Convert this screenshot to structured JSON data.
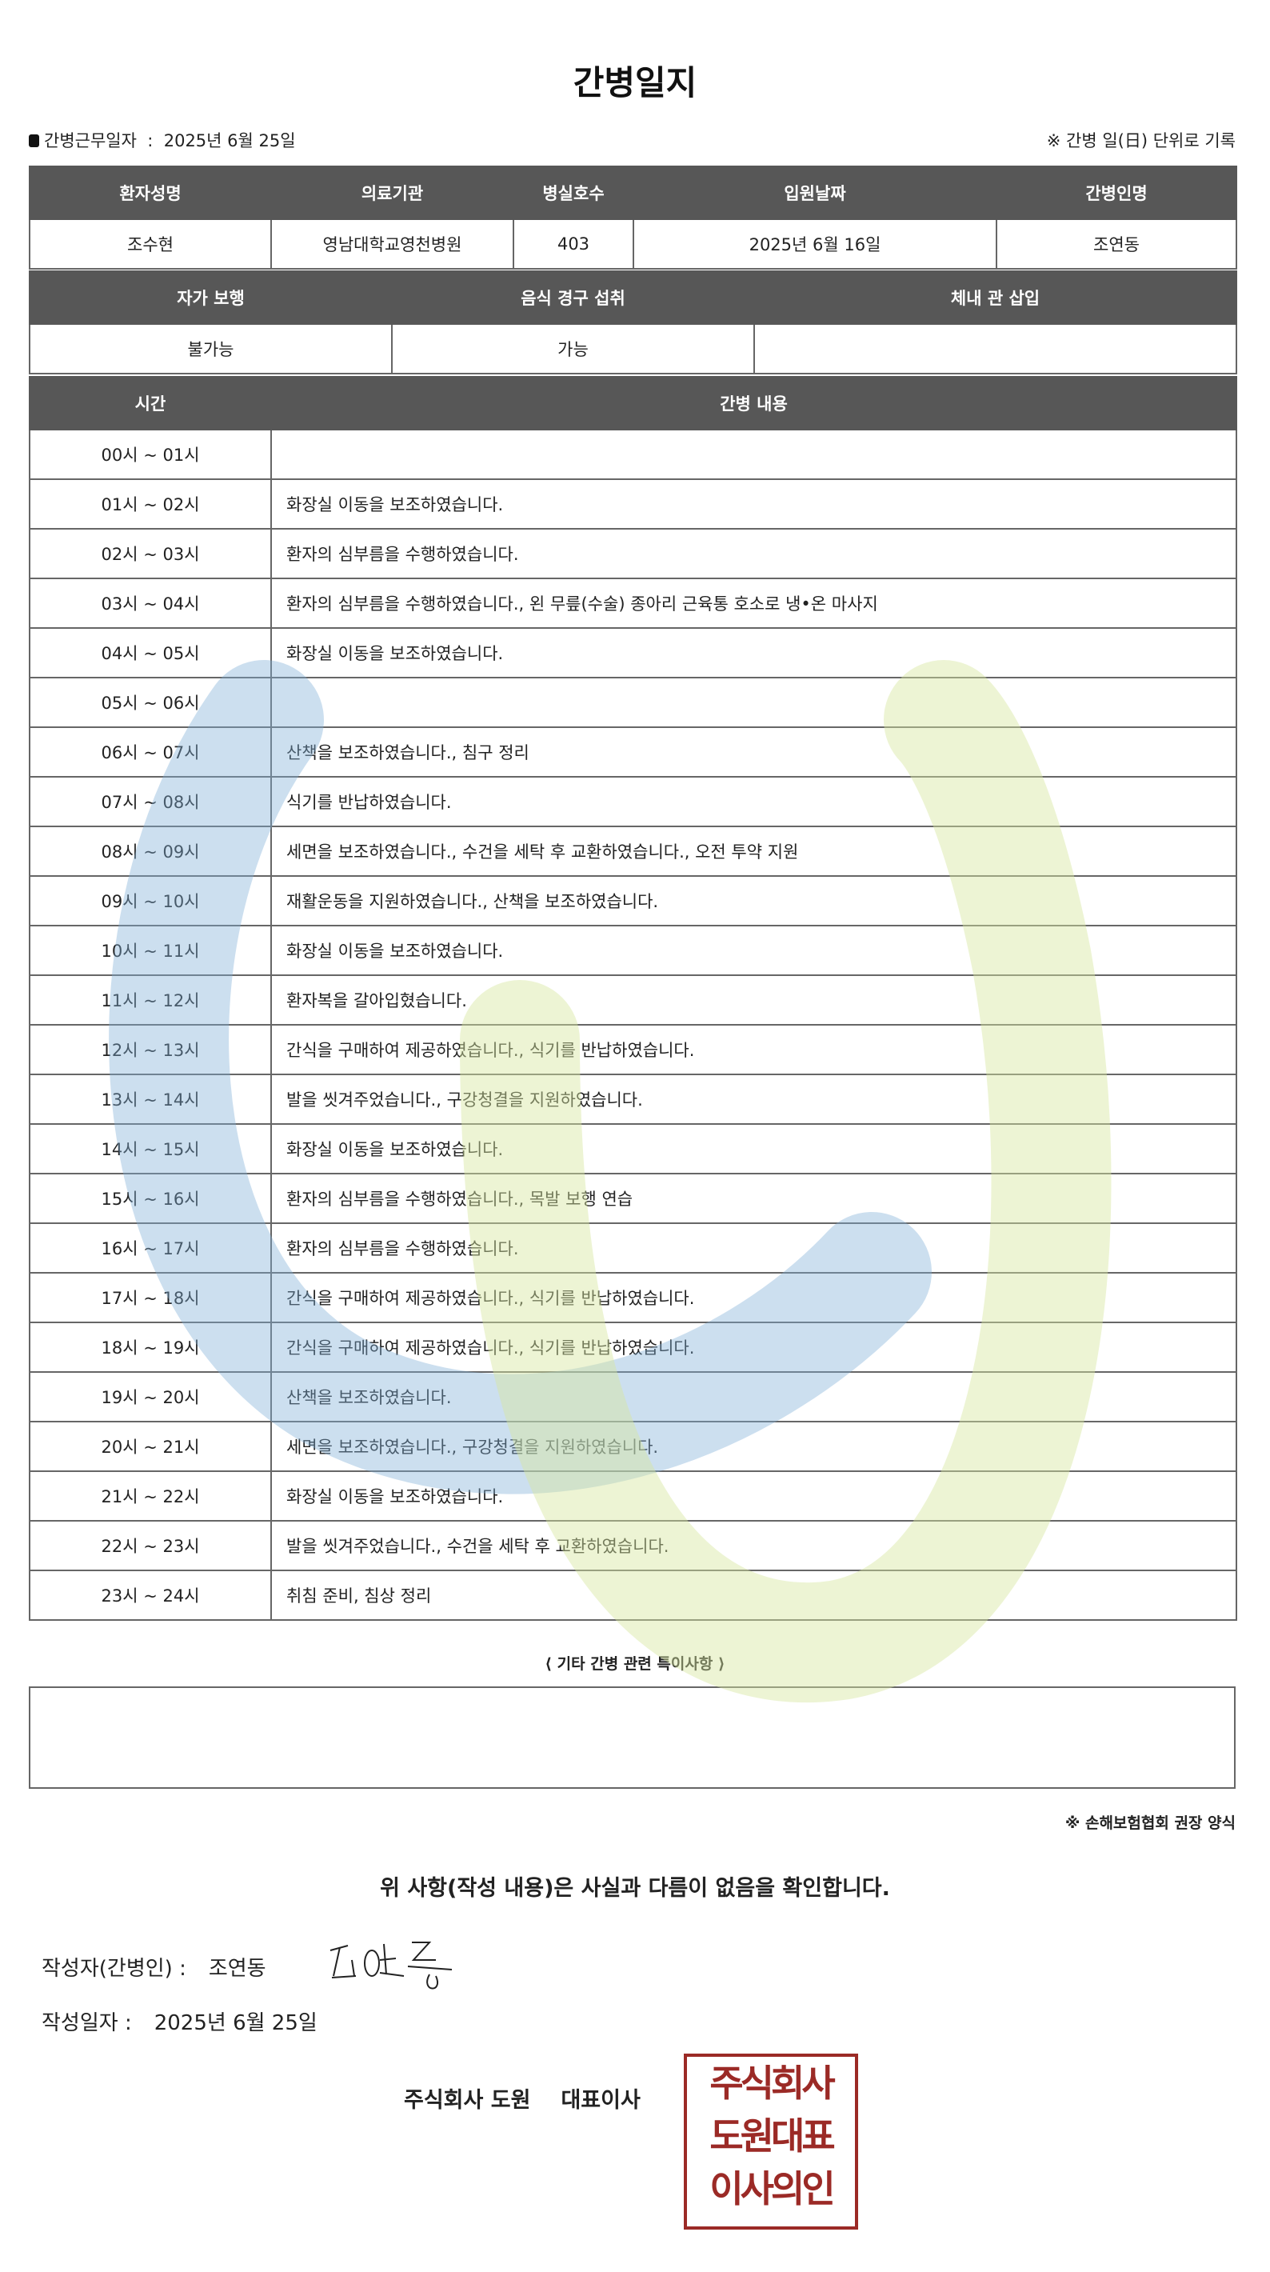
{
  "title": "간병일지",
  "work_date": {
    "label": "간병근무일자",
    "separator": ":",
    "value": "2025년 6월 25일"
  },
  "day_note": "※ 간병 일(日) 단위로 기록",
  "patient_table": {
    "headers": [
      "환자성명",
      "의료기관",
      "병실호수",
      "입원날짜",
      "간병인명"
    ],
    "values": [
      "조수현",
      "영남대학교영천병원",
      "403",
      "2025년 6월 16일",
      "조연동"
    ]
  },
  "status_table": {
    "headers": [
      "자가 보행",
      "음식 경구 섭취",
      "체내 관 삽입"
    ],
    "values": [
      "불가능",
      "가능",
      ""
    ]
  },
  "log_table": {
    "headers": [
      "시간",
      "간병 내용"
    ],
    "rows": [
      {
        "time": "00시 ~ 01시",
        "content": ""
      },
      {
        "time": "01시 ~ 02시",
        "content": "화장실 이동을 보조하였습니다."
      },
      {
        "time": "02시 ~ 03시",
        "content": "환자의 심부름을 수행하였습니다."
      },
      {
        "time": "03시 ~ 04시",
        "content": "환자의 심부름을 수행하였습니다., 왼 무릎(수술) 종아리 근육통 호소로 냉•온 마사지"
      },
      {
        "time": "04시 ~ 05시",
        "content": "화장실 이동을 보조하였습니다."
      },
      {
        "time": "05시 ~ 06시",
        "content": ""
      },
      {
        "time": "06시 ~ 07시",
        "content": "산책을 보조하였습니다., 침구 정리"
      },
      {
        "time": "07시 ~ 08시",
        "content": "식기를 반납하였습니다."
      },
      {
        "time": "08시 ~ 09시",
        "content": "세면을 보조하였습니다., 수건을 세탁 후 교환하였습니다., 오전 투약 지원"
      },
      {
        "time": "09시 ~ 10시",
        "content": "재활운동을 지원하였습니다., 산책을 보조하였습니다."
      },
      {
        "time": "10시 ~ 11시",
        "content": "화장실 이동을 보조하였습니다."
      },
      {
        "time": "11시 ~ 12시",
        "content": "환자복을 갈아입혔습니다."
      },
      {
        "time": "12시 ~ 13시",
        "content": "간식을 구매하여 제공하였습니다., 식기를 반납하였습니다."
      },
      {
        "time": "13시 ~ 14시",
        "content": "발을 씻겨주었습니다., 구강청결을 지원하였습니다."
      },
      {
        "time": "14시 ~ 15시",
        "content": "화장실 이동을 보조하였습니다."
      },
      {
        "time": "15시 ~ 16시",
        "content": "환자의 심부름을 수행하였습니다., 목발 보행 연습"
      },
      {
        "time": "16시 ~ 17시",
        "content": "환자의 심부름을 수행하였습니다."
      },
      {
        "time": "17시 ~ 18시",
        "content": "간식을 구매하여 제공하였습니다., 식기를 반납하였습니다."
      },
      {
        "time": "18시 ~ 19시",
        "content": "간식을 구매하여 제공하였습니다., 식기를 반납하였습니다."
      },
      {
        "time": "19시 ~ 20시",
        "content": "산책을 보조하였습니다."
      },
      {
        "time": "20시 ~ 21시",
        "content": "세면을 보조하였습니다., 구강청결을 지원하였습니다."
      },
      {
        "time": "21시 ~ 22시",
        "content": "화장실 이동을 보조하였습니다."
      },
      {
        "time": "22시 ~ 23시",
        "content": "발을 씻겨주었습니다., 수건을 세탁 후 교환하였습니다."
      },
      {
        "time": "23시 ~ 24시",
        "content": "취침 준비, 침상 정리"
      }
    ]
  },
  "special_notes": {
    "title": "⟨ 기타 간병 관련 특이사항 ⟩",
    "value": ""
  },
  "association_note": "※ 손해보험협회 권장 양식",
  "confirmation": "위 사항(작성 내용)은 사실과 다름이 없음을 확인합니다.",
  "writer": {
    "label": "작성자(간병인) :",
    "value": "조연동",
    "signature": "조연동"
  },
  "written_date": {
    "label": "작성일자 :",
    "value": "2025년 6월 25일"
  },
  "company": {
    "name": "주식회사 도원",
    "title": "대표이사"
  },
  "stamp": {
    "lines": [
      "주식회사",
      "도원대표",
      "이사의인"
    ],
    "color": "#9b2a26"
  },
  "colors": {
    "header_bg": "#575757",
    "watermark_blue": "#7fb0d8",
    "watermark_green": "#d8e6a0"
  }
}
